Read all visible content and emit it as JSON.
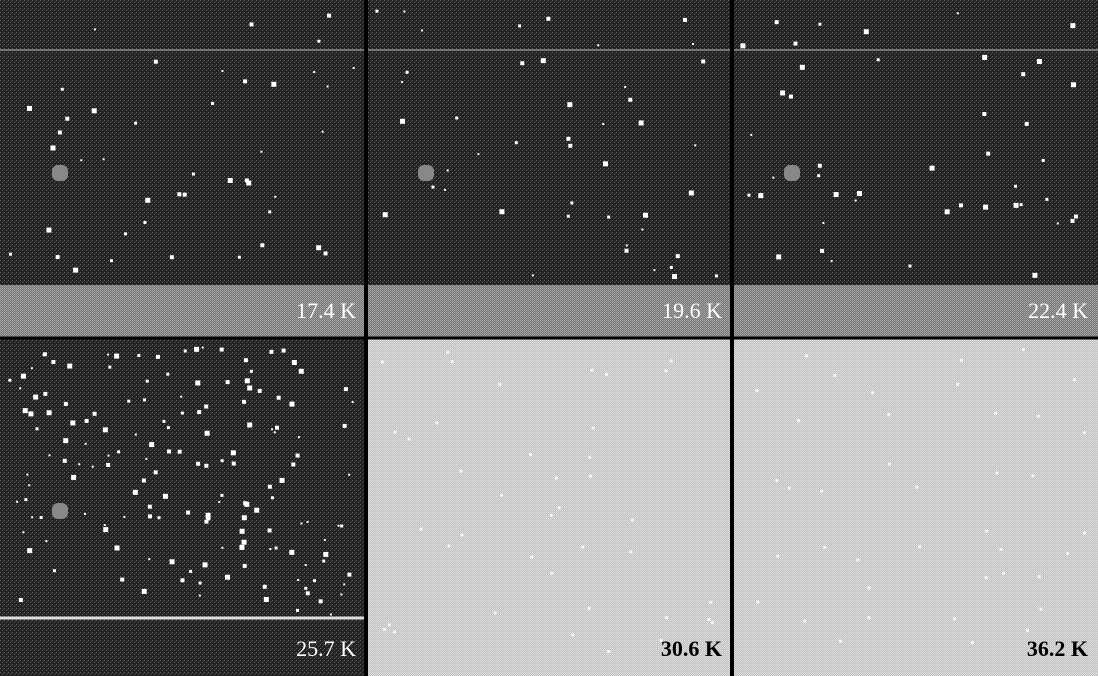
{
  "panels": [
    {
      "label": "17.4 K"
    },
    {
      "label": "19.6 K"
    },
    {
      "label": "22.4 K"
    },
    {
      "label": "25.7 K"
    },
    {
      "label": "30.6 K"
    },
    {
      "label": "36.2 K"
    }
  ]
}
